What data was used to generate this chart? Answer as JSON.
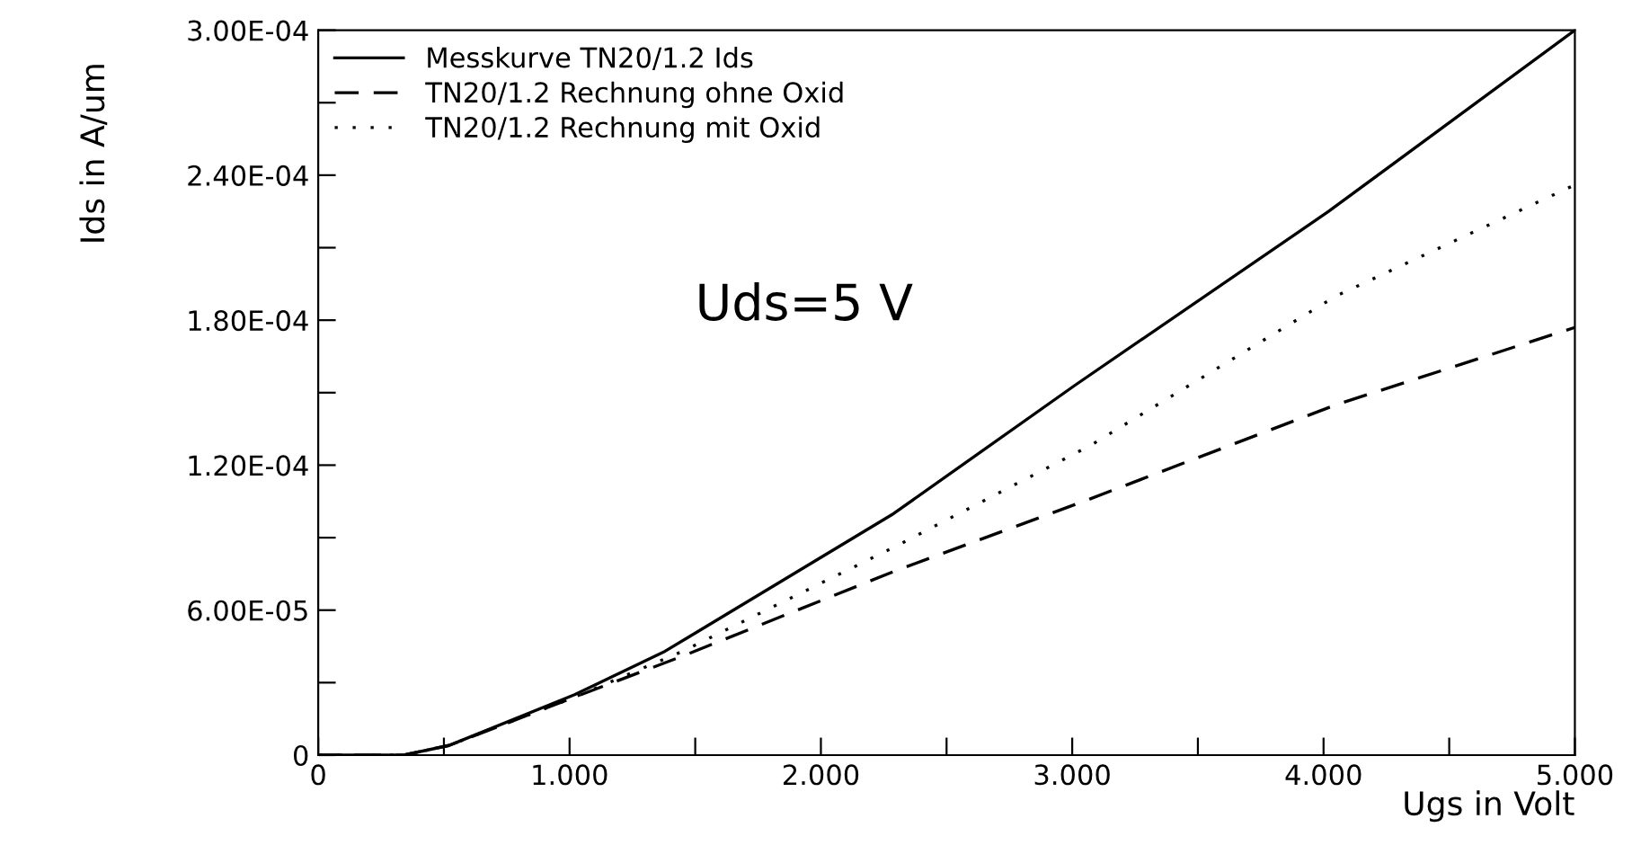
{
  "chart_data": {
    "type": "line",
    "xlabel": "Ugs in Volt",
    "ylabel": "Ids in A/um",
    "annotations": [
      "Uds=5 V"
    ],
    "series": [
      {
        "name": "Messkurve TN20/1.2 Ids",
        "color": "#000000",
        "line_style": "solid",
        "x": [
          0,
          0.34,
          0.52,
          1.02,
          1.38,
          2.29,
          3.01,
          4.02,
          5.0
        ],
        "values": [
          0,
          0,
          4e-06,
          2.5e-05,
          4.3e-05,
          0.0001,
          0.000153,
          0.000225,
          0.0003
        ]
      },
      {
        "name": "TN20/1.2 Rechnung ohne Oxid",
        "color": "#000000",
        "line_style": "dashed",
        "x": [
          0,
          0.34,
          0.52,
          1.02,
          1.45,
          2.29,
          3.07,
          4.05,
          5.0
        ],
        "values": [
          0,
          0,
          4e-06,
          2.4e-05,
          4.1e-05,
          7.6e-05,
          0.000106,
          0.000145,
          0.000177
        ]
      },
      {
        "name": "TN20/1.2 Rechnung mit Oxid",
        "color": "#000000",
        "line_style": "dotted",
        "x": [
          0,
          0.34,
          0.52,
          1.02,
          1.45,
          2.29,
          3.07,
          4.05,
          5.0
        ],
        "values": [
          0,
          0,
          4e-06,
          2.4e-05,
          4.3e-05,
          8.6e-05,
          0.000128,
          0.00019,
          0.000236
        ]
      }
    ],
    "xlim": [
      0,
      5
    ],
    "ylim": [
      0,
      0.0003
    ],
    "xticks": [
      0,
      {
        "value": 0.5,
        "label": null
      },
      {
        "value": 1,
        "label": "1.000"
      },
      {
        "value": 1.5,
        "label": null
      },
      {
        "value": 2,
        "label": "2.000"
      },
      {
        "value": 2.5,
        "label": null
      },
      {
        "value": 3,
        "label": "3.000"
      },
      {
        "value": 3.5,
        "label": null
      },
      {
        "value": 4,
        "label": "4.000"
      },
      {
        "value": 4.5,
        "label": null
      },
      {
        "value": 5,
        "label": "5.000"
      }
    ],
    "yticks": [
      0,
      {
        "value": 3e-05,
        "label": null
      },
      {
        "value": 6e-05,
        "label": "6.00E-05"
      },
      {
        "value": 9e-05,
        "label": null
      },
      {
        "value": 0.00012,
        "label": "1.20E-04"
      },
      {
        "value": 0.00015,
        "label": null
      },
      {
        "value": 0.00018,
        "label": "1.80E-04"
      },
      {
        "value": 0.00021,
        "label": null
      },
      {
        "value": 0.00024,
        "label": "2.40E-04"
      },
      {
        "value": 0.00027,
        "label": null
      },
      {
        "value": 0.0003,
        "label": "3.00E-04"
      }
    ],
    "grid": false,
    "legend": "top left",
    "marker": "none"
  }
}
